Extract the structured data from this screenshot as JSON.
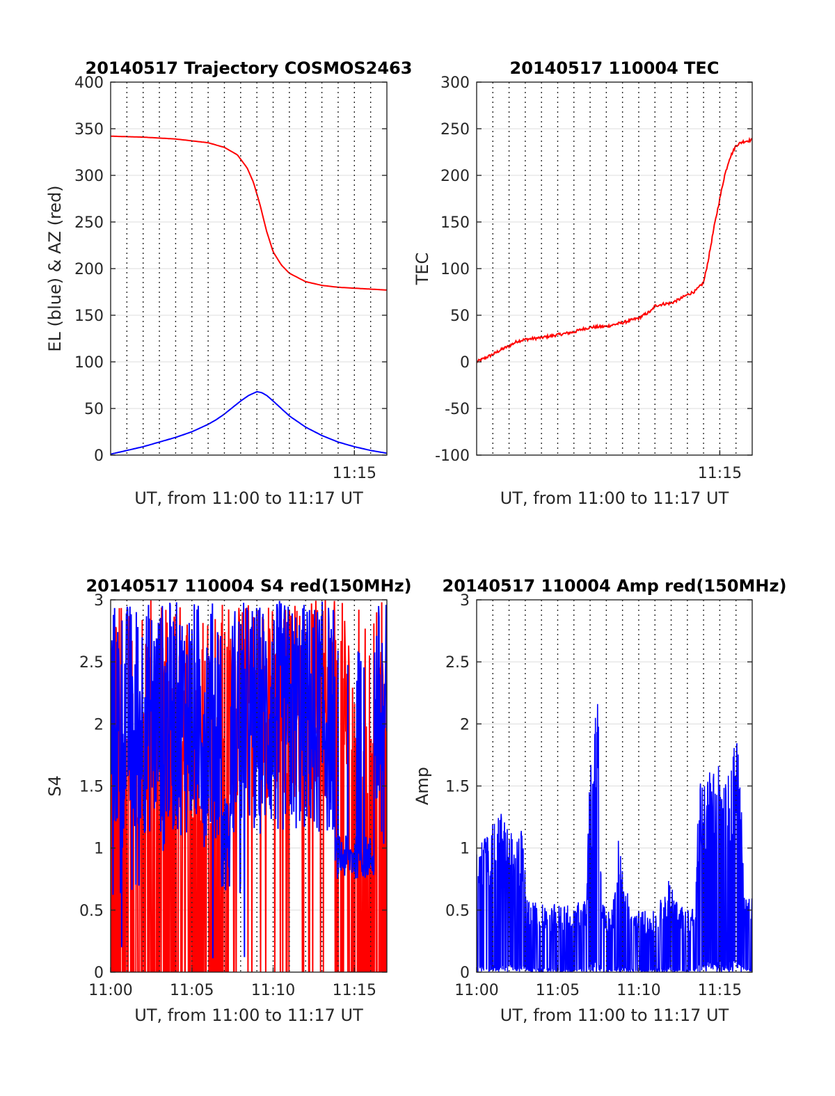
{
  "figure": {
    "background": "#ffffff"
  },
  "chart_data": [
    {
      "type": "line",
      "title": "20140517 Trajectory COSMOS2463",
      "xlabel": "UT, from 11:00 to 11:17 UT",
      "ylabel": "EL (blue) & AZ (red)",
      "xlim": [
        0,
        17
      ],
      "ylim": [
        0,
        400
      ],
      "yticks": [
        0,
        50,
        100,
        150,
        200,
        250,
        300,
        350,
        400
      ],
      "xtick_labels": [
        {
          "x": 15,
          "label": "11:15"
        }
      ],
      "vgrid_minutes": [
        1,
        2,
        3,
        4,
        5,
        6,
        7,
        8,
        9,
        10,
        11,
        12,
        13,
        14,
        15,
        16
      ],
      "grid": true,
      "series": [
        {
          "color": "#ff0000",
          "x": [
            0,
            2,
            4,
            6,
            7,
            7.8,
            8.4,
            8.8,
            9.2,
            9.6,
            10,
            10.5,
            11,
            12,
            13,
            14,
            15,
            16,
            17
          ],
          "y": [
            342,
            341,
            339,
            335,
            330,
            322,
            308,
            292,
            268,
            240,
            218,
            204,
            195,
            186,
            182,
            180,
            179,
            178,
            177
          ]
        },
        {
          "color": "#0000ff",
          "x": [
            0,
            1,
            2,
            3,
            4,
            5,
            6,
            6.5,
            7,
            7.5,
            8,
            8.5,
            9,
            9.3,
            9.6,
            10,
            10.5,
            11,
            12,
            13,
            14,
            15,
            16,
            17
          ],
          "y": [
            1,
            5,
            9,
            14,
            19,
            25,
            33,
            38,
            44,
            51,
            58,
            64,
            68,
            67,
            64,
            58,
            50,
            42,
            30,
            21,
            14,
            9,
            5,
            2
          ]
        }
      ]
    },
    {
      "type": "line",
      "title": "20140517 110004 TEC",
      "xlabel": "UT, from 11:00 to 11:17 UT",
      "ylabel": "TEC",
      "xlim": [
        0,
        17
      ],
      "ylim": [
        -100,
        300
      ],
      "yticks": [
        -100,
        -50,
        0,
        50,
        100,
        150,
        200,
        250,
        300
      ],
      "xtick_labels": [
        {
          "x": 15,
          "label": "11:15"
        }
      ],
      "vgrid_minutes": [
        1,
        2,
        3,
        4,
        5,
        6,
        7,
        8,
        9,
        10,
        11,
        12,
        13,
        14,
        15,
        16
      ],
      "grid": true,
      "series": [
        {
          "color": "#ff0000",
          "x": [
            0,
            0.5,
            1,
            1.5,
            2,
            2.5,
            3,
            4,
            5,
            6,
            6.5,
            7,
            8,
            9,
            10,
            10.8,
            11,
            11.5,
            12,
            12.5,
            13,
            13.5,
            14,
            14.3,
            14.6,
            15,
            15.3,
            15.6,
            16,
            16.4,
            17
          ],
          "y": [
            0,
            4,
            8,
            13,
            17,
            22,
            24,
            26,
            29,
            32,
            35,
            37,
            38,
            42,
            47,
            55,
            60,
            62,
            63,
            67,
            72,
            76,
            85,
            110,
            140,
            175,
            200,
            218,
            232,
            236,
            238
          ]
        }
      ]
    },
    {
      "type": "line",
      "title": "20140517 110004 S4 red(150MHz)",
      "xlabel": "UT, from 11:00 to 11:17 UT",
      "ylabel": "S4",
      "xlim": [
        0,
        17
      ],
      "ylim": [
        0,
        3
      ],
      "yticks": [
        0,
        0.5,
        1,
        1.5,
        2,
        2.5,
        3
      ],
      "xtick_labels": [
        {
          "x": 0,
          "label": "11:00"
        },
        {
          "x": 5,
          "label": "11:05"
        },
        {
          "x": 10,
          "label": "11:10"
        },
        {
          "x": 15,
          "label": "11:15"
        }
      ],
      "vgrid_minutes": [
        1,
        2,
        3,
        4,
        5,
        6,
        7,
        8,
        9,
        10,
        11,
        12,
        13,
        14,
        15,
        16
      ],
      "grid": true,
      "series": [
        {
          "color": "#ff0000",
          "x_range": [
            0,
            17
          ],
          "y_range": [
            0,
            3
          ],
          "description_values": "dense noisy signal saturating at 3"
        },
        {
          "color": "#0000ff",
          "x_range": [
            0,
            17
          ],
          "y_range": [
            0.5,
            3
          ],
          "description_values": "dense noisy signal, around 0.9 between 13.5 and 16"
        }
      ]
    },
    {
      "type": "line",
      "title": "20140517 110004 Amp red(150MHz)",
      "xlabel": "UT, from 11:00 to 11:17 UT",
      "ylabel": "Amp",
      "xlim": [
        0,
        17
      ],
      "ylim": [
        0,
        3
      ],
      "yticks": [
        0,
        0.5,
        1,
        1.5,
        2,
        2.5,
        3
      ],
      "xtick_labels": [
        {
          "x": 0,
          "label": "11:00"
        },
        {
          "x": 5,
          "label": "11:05"
        },
        {
          "x": 10,
          "label": "11:10"
        },
        {
          "x": 15,
          "label": "11:15"
        }
      ],
      "vgrid_minutes": [
        1,
        2,
        3,
        4,
        5,
        6,
        7,
        8,
        9,
        10,
        11,
        12,
        13,
        14,
        15,
        16
      ],
      "grid": true,
      "series": [
        {
          "color": "#0000ff",
          "envelope_x": [
            0,
            0.5,
            1,
            1.5,
            2,
            2.5,
            2.9,
            3.1,
            4,
            5,
            6,
            6.8,
            7,
            7.1,
            7.3,
            7.5,
            7.7,
            8,
            8.5,
            8.8,
            9,
            9.5,
            10,
            11,
            11.8,
            12.3,
            12.8,
            13.5,
            13.7,
            14,
            14.5,
            15,
            15.5,
            16,
            16.3,
            16.5,
            17
          ],
          "envelope_y": [
            1.05,
            1.1,
            1.2,
            1.3,
            1.15,
            1.1,
            1.2,
            0.6,
            0.55,
            0.55,
            0.55,
            0.6,
            2.0,
            1.5,
            2.3,
            2.25,
            0.6,
            0.5,
            0.6,
            1.3,
            1.0,
            0.5,
            0.5,
            0.5,
            0.75,
            0.65,
            0.5,
            0.55,
            1.5,
            1.6,
            1.7,
            1.7,
            1.65,
            2.05,
            1.5,
            0.6,
            0.6
          ]
        }
      ]
    }
  ]
}
